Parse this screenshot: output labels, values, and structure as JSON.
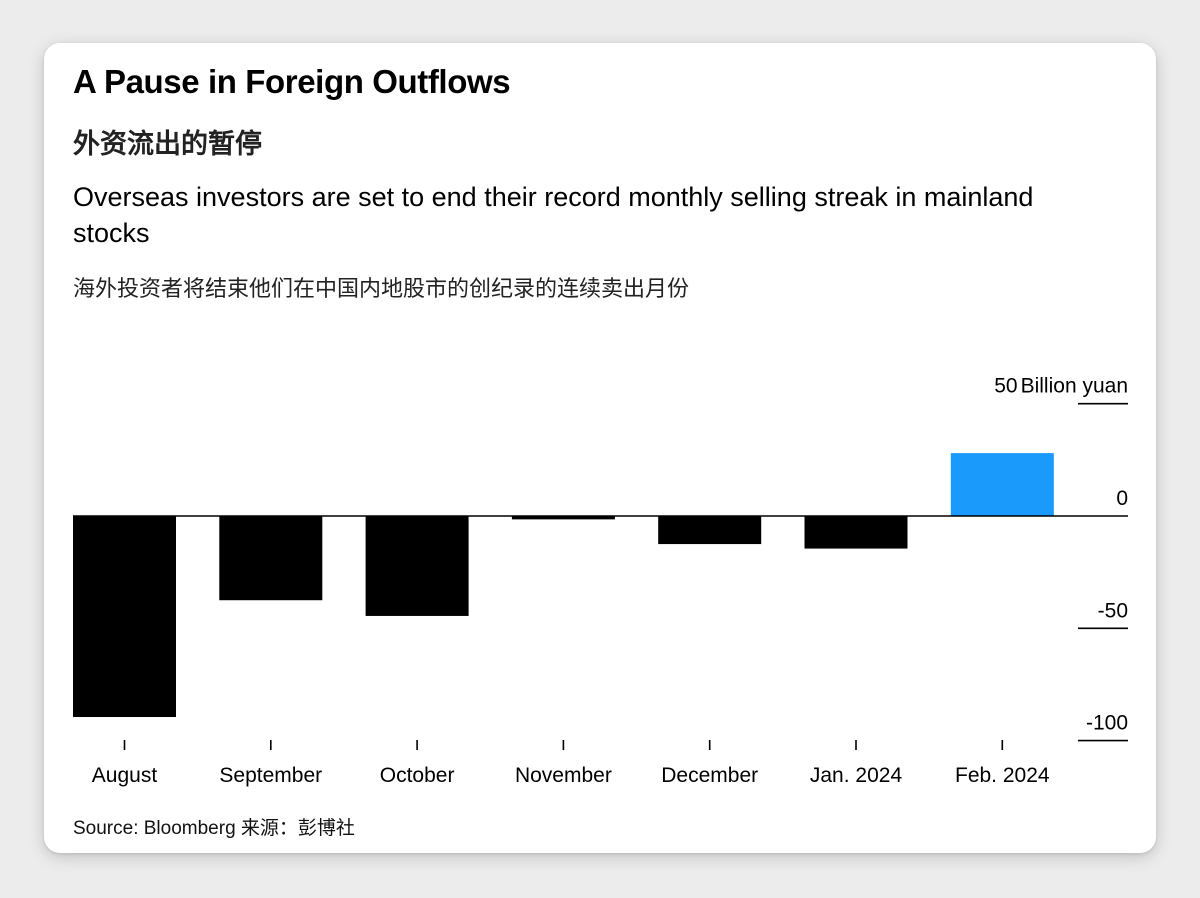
{
  "header": {
    "title": "A Pause in Foreign Outflows",
    "title_cn": "外资流出的暂停",
    "subtitle": "Overseas investors are set to end their record monthly selling streak in mainland stocks",
    "subtitle_cn": "海外投资者将结束他们在中国内地股市的创纪录的连续卖出月份"
  },
  "chart_data": {
    "type": "bar",
    "categories": [
      "August",
      "September",
      "October",
      "November",
      "December",
      "Jan. 2024",
      "Feb. 2024"
    ],
    "values": [
      -89.5,
      -37.5,
      -44.5,
      -1.5,
      -12.5,
      -14.5,
      28
    ],
    "ylim": [
      -100,
      50
    ],
    "yticks": [
      50,
      0,
      -50,
      -100
    ],
    "ytick_labels": [
      "50",
      "0",
      "-50",
      "-100"
    ],
    "yunit": "Billion yuan",
    "colors": {
      "negative": "#000000",
      "highlight": "#1a9bfc"
    },
    "highlight_index": 6
  },
  "footer": {
    "source": "Source: Bloomberg 来源：彭博社"
  }
}
